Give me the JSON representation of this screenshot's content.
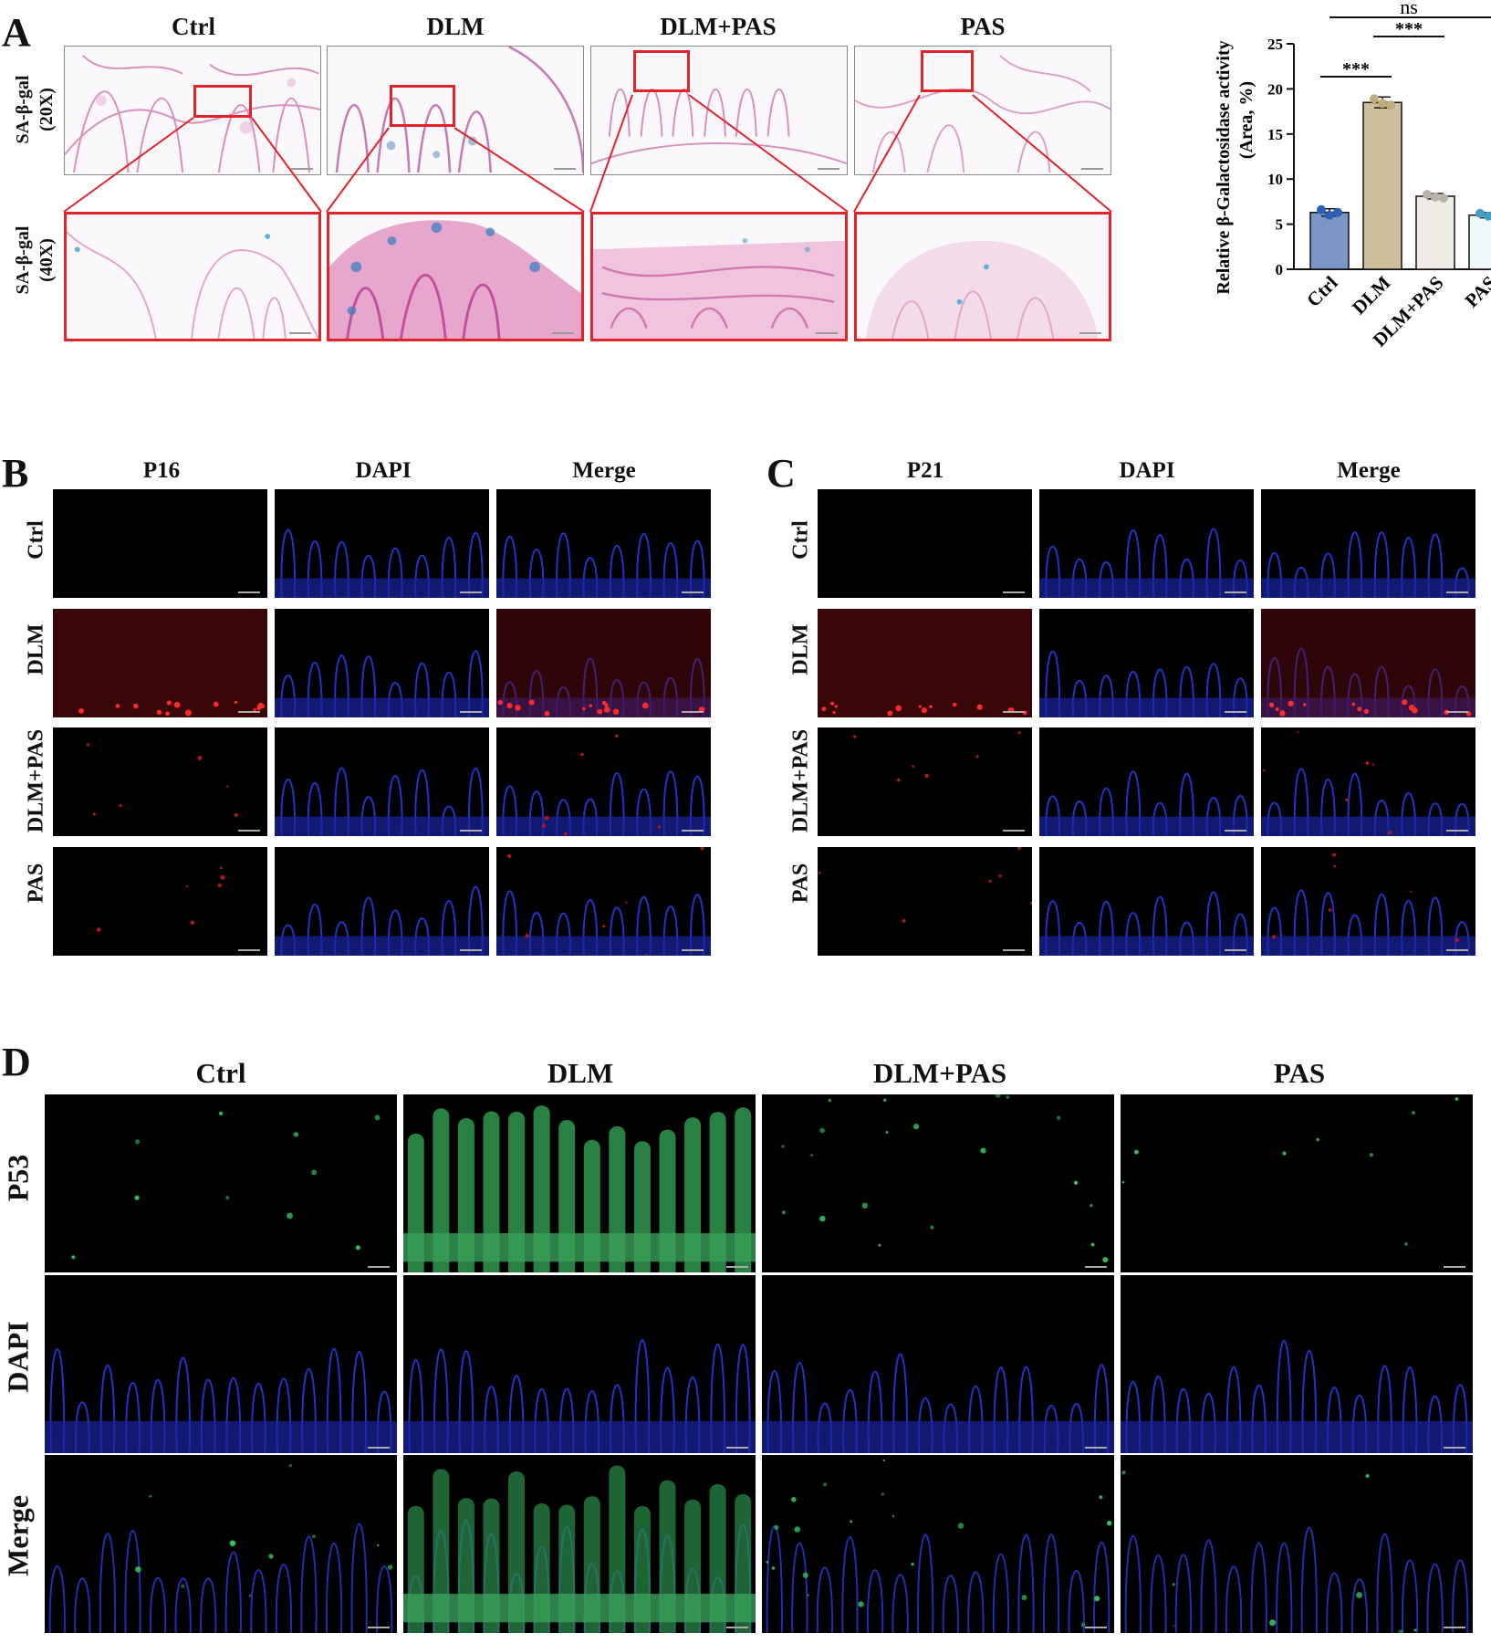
{
  "panel_a": {
    "letter": "A",
    "columns": [
      "Ctrl",
      "DLM",
      "DLM+PAS",
      "PAS"
    ],
    "row_labels": [
      {
        "line1": "SA-β-gal",
        "line2": "(20X)"
      },
      {
        "line1": "SA-β-gal",
        "line2": "(40X)"
      }
    ]
  },
  "chart_data": {
    "type": "bar",
    "title": "",
    "ylabel_line1": "Relative β-Galactosidase activity",
    "ylabel_line2": "(Area, %)",
    "categories": [
      "Ctrl",
      "DLM",
      "DLM+PAS",
      "PAS"
    ],
    "values": [
      6.3,
      18.5,
      8.1,
      6.0
    ],
    "errors": [
      0.4,
      0.6,
      0.3,
      0.3
    ],
    "points": [
      [
        6.6,
        6.0,
        6.3
      ],
      [
        18.9,
        18.4,
        18.2
      ],
      [
        8.3,
        8.0,
        7.9
      ],
      [
        6.2,
        5.9,
        6.1
      ]
    ],
    "bar_colors": [
      "#7b96c6",
      "#cdbf9c",
      "#efece6",
      "#eef7fa"
    ],
    "point_colors": [
      "#2f5fb3",
      "#c2ab7c",
      "#b8b3a9",
      "#46a0c6"
    ],
    "ylim": [
      0,
      25
    ],
    "yticks": [
      0,
      5,
      10,
      15,
      20,
      25
    ],
    "significance": [
      {
        "from": 0,
        "to": 1,
        "label": "***"
      },
      {
        "from": 1,
        "to": 2,
        "label": "***"
      },
      {
        "from": 0,
        "to": 3,
        "label": "ns"
      }
    ]
  },
  "panel_b": {
    "letter": "B",
    "columns": [
      "P16",
      "DAPI",
      "Merge"
    ],
    "rows": [
      "Ctrl",
      "DLM",
      "DLM+PAS",
      "PAS"
    ]
  },
  "panel_c": {
    "letter": "C",
    "columns": [
      "P21",
      "DAPI",
      "Merge"
    ],
    "rows": [
      "Ctrl",
      "DLM",
      "DLM+PAS",
      "PAS"
    ]
  },
  "panel_d": {
    "letter": "D",
    "columns": [
      "Ctrl",
      "DLM",
      "DLM+PAS",
      "PAS"
    ],
    "rows": [
      "P53",
      "DAPI",
      "Merge"
    ]
  }
}
